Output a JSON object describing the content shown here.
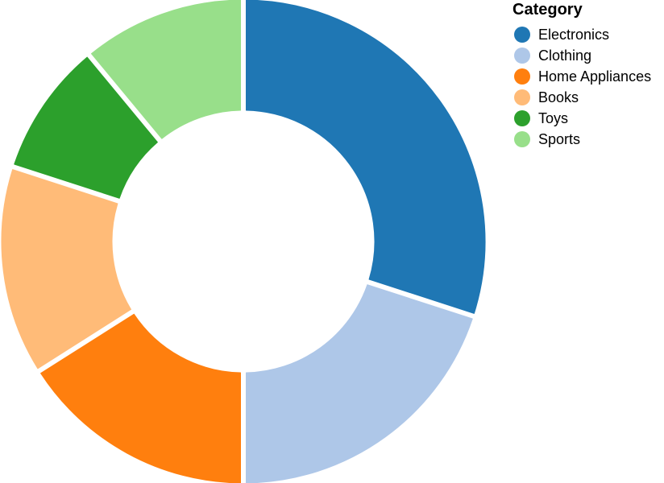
{
  "chart_data": {
    "type": "pie",
    "donut": true,
    "legend_title": "Category",
    "legend_position": "top-right",
    "categories": [
      "Electronics",
      "Clothing",
      "Home Appliances",
      "Books",
      "Toys",
      "Sports"
    ],
    "values": [
      30,
      20,
      16,
      14,
      9,
      11
    ],
    "colors": [
      "#1f77b4",
      "#aec7e8",
      "#ff7f0e",
      "#ffbb78",
      "#2ca02c",
      "#98df8a"
    ]
  }
}
